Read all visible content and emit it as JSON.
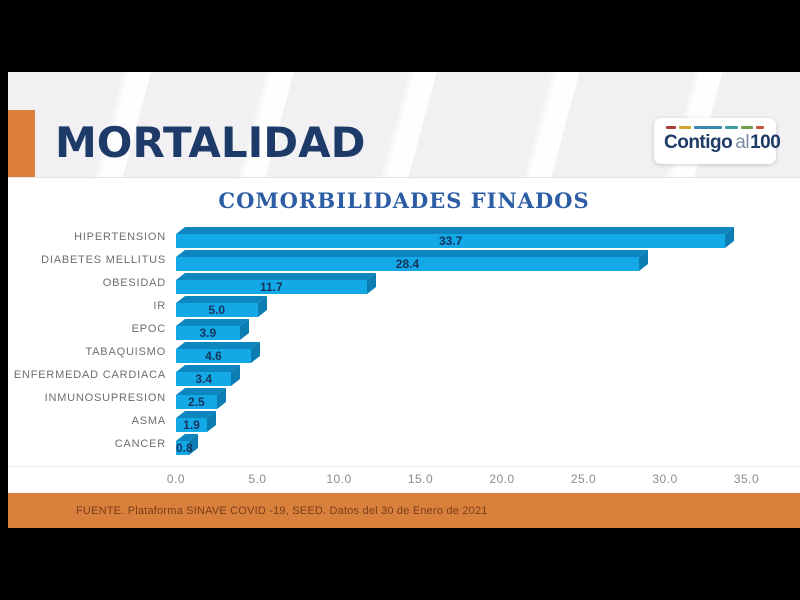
{
  "slide": {
    "title": "MORTALIDAD",
    "logo": {
      "part1": "Contigo",
      "part2": "al",
      "part3": "100"
    },
    "footer_text": "FUENTE. Plataforma SINAVE COVID -19, SEED. Datos del 30 de Enero de 2021"
  },
  "chart_data": {
    "type": "bar",
    "orientation": "horizontal",
    "title": "COMORBILIDADES FINADOS",
    "categories": [
      "HIPERTENSION",
      "DIABETES MELLITUS",
      "OBESIDAD",
      "IR",
      "EPOC",
      "TABAQUISMO",
      "ENFERMEDAD CARDIACA",
      "INMUNOSUPRESION",
      "ASMA",
      "CANCER"
    ],
    "values": [
      33.7,
      28.4,
      11.7,
      5.0,
      3.9,
      4.6,
      3.4,
      2.5,
      1.9,
      0.8
    ],
    "value_labels": [
      "33.7",
      "28.4",
      "11.7",
      "5.0",
      "3.9",
      "4.6",
      "3.4",
      "2.5",
      "1.9",
      "0.8"
    ],
    "xlim": [
      0,
      35
    ],
    "x_ticks": [
      0,
      5,
      10,
      15,
      20,
      25,
      30,
      35
    ],
    "x_tick_labels": [
      "0.0",
      "5.0",
      "10.0",
      "15.0",
      "20.0",
      "25.0",
      "30.0",
      "35.0"
    ],
    "grid": false,
    "legend": false
  },
  "colors": {
    "bar_front": "#12a9e6",
    "bar_top": "#0e86c0",
    "bar_side": "#0b7db2",
    "value_text": "#17335d",
    "title_navy": "#1e3a68",
    "chart_title_blue": "#2d5da4",
    "accent_orange": "#dc7e3b",
    "footer_orange": "#d9803c",
    "footer_text": "#7a3c1a",
    "logo_navy": "#1e3a66",
    "logo_gray": "#7a8ba3",
    "logo_dash_colors": [
      "#a63d3a",
      "#d3a62f",
      "#3b87ad",
      "#3aa0a0",
      "#6fa24a",
      "#c2563a"
    ]
  }
}
